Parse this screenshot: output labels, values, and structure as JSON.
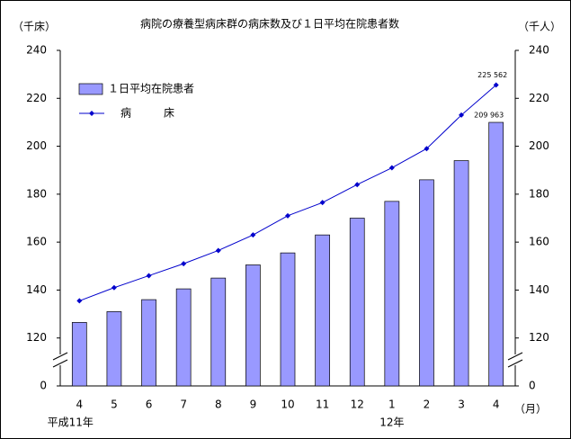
{
  "chart_data": {
    "type": "bar-line",
    "title": "病院の療養型病床群の病床数及び１日平均在院患者数",
    "y_label": "（千床）",
    "y2_label": "（千人）",
    "categories": [
      "4",
      "5",
      "6",
      "7",
      "8",
      "9",
      "10",
      "11",
      "12",
      "1",
      "2",
      "3",
      "4"
    ],
    "category_groups": [
      {
        "label": "平成11年",
        "index": 0
      },
      {
        "label": "12年",
        "index": 9
      }
    ],
    "x_unit": "（月）",
    "series": [
      {
        "name": "１日平均在院患者",
        "type": "bar",
        "axis": "y2",
        "color": "#9999ff",
        "values": [
          126.5,
          131,
          136,
          140.5,
          145,
          150.5,
          155.5,
          163,
          170,
          177,
          186,
          194,
          209.963
        ],
        "value_labels": [
          null,
          null,
          null,
          null,
          null,
          null,
          null,
          null,
          null,
          null,
          null,
          null,
          "209 963"
        ]
      },
      {
        "name": "病　　　床",
        "type": "line",
        "color": "#0000cc",
        "values": [
          135.5,
          141,
          146,
          151,
          156.5,
          163,
          171,
          176.5,
          184,
          191,
          199,
          213,
          225.562
        ],
        "value_labels": [
          null,
          null,
          null,
          null,
          null,
          null,
          null,
          null,
          null,
          null,
          null,
          null,
          "225 562"
        ]
      }
    ],
    "ylim": [
      0,
      240
    ],
    "yticks": [
      0,
      120,
      140,
      160,
      180,
      200,
      220,
      240
    ],
    "y2lim": [
      0,
      240
    ],
    "y2ticks": [
      0,
      120,
      140,
      160,
      180,
      200,
      220,
      240
    ],
    "axis_break": [
      0,
      100
    ],
    "legend": "upper-left",
    "grid": false
  }
}
